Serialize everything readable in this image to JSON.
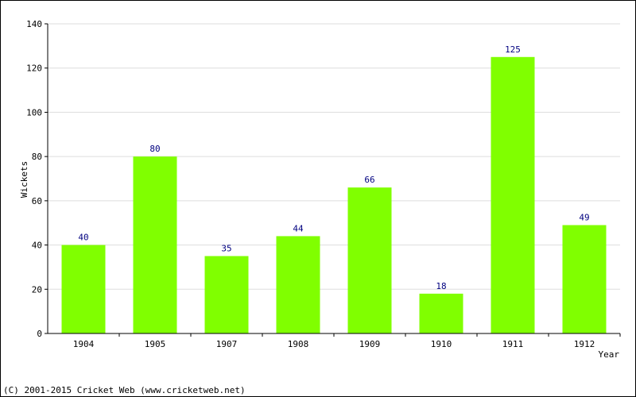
{
  "chart_data": {
    "type": "bar",
    "categories": [
      "1904",
      "1905",
      "1907",
      "1908",
      "1909",
      "1910",
      "1911",
      "1912"
    ],
    "values": [
      40,
      80,
      35,
      44,
      66,
      18,
      125,
      49
    ],
    "xlabel": "Year",
    "ylabel": "Wickets",
    "ylim": [
      0,
      140
    ],
    "yticks": [
      0,
      20,
      40,
      60,
      80,
      100,
      120,
      140
    ],
    "grid": true,
    "data_labels": true
  },
  "colors": {
    "bar": "#80ff00",
    "data_label": "#000080",
    "grid": "#dddddd",
    "axis": "#000000"
  },
  "footer": {
    "copyright": "(C) 2001-2015 Cricket Web (www.cricketweb.net)"
  }
}
